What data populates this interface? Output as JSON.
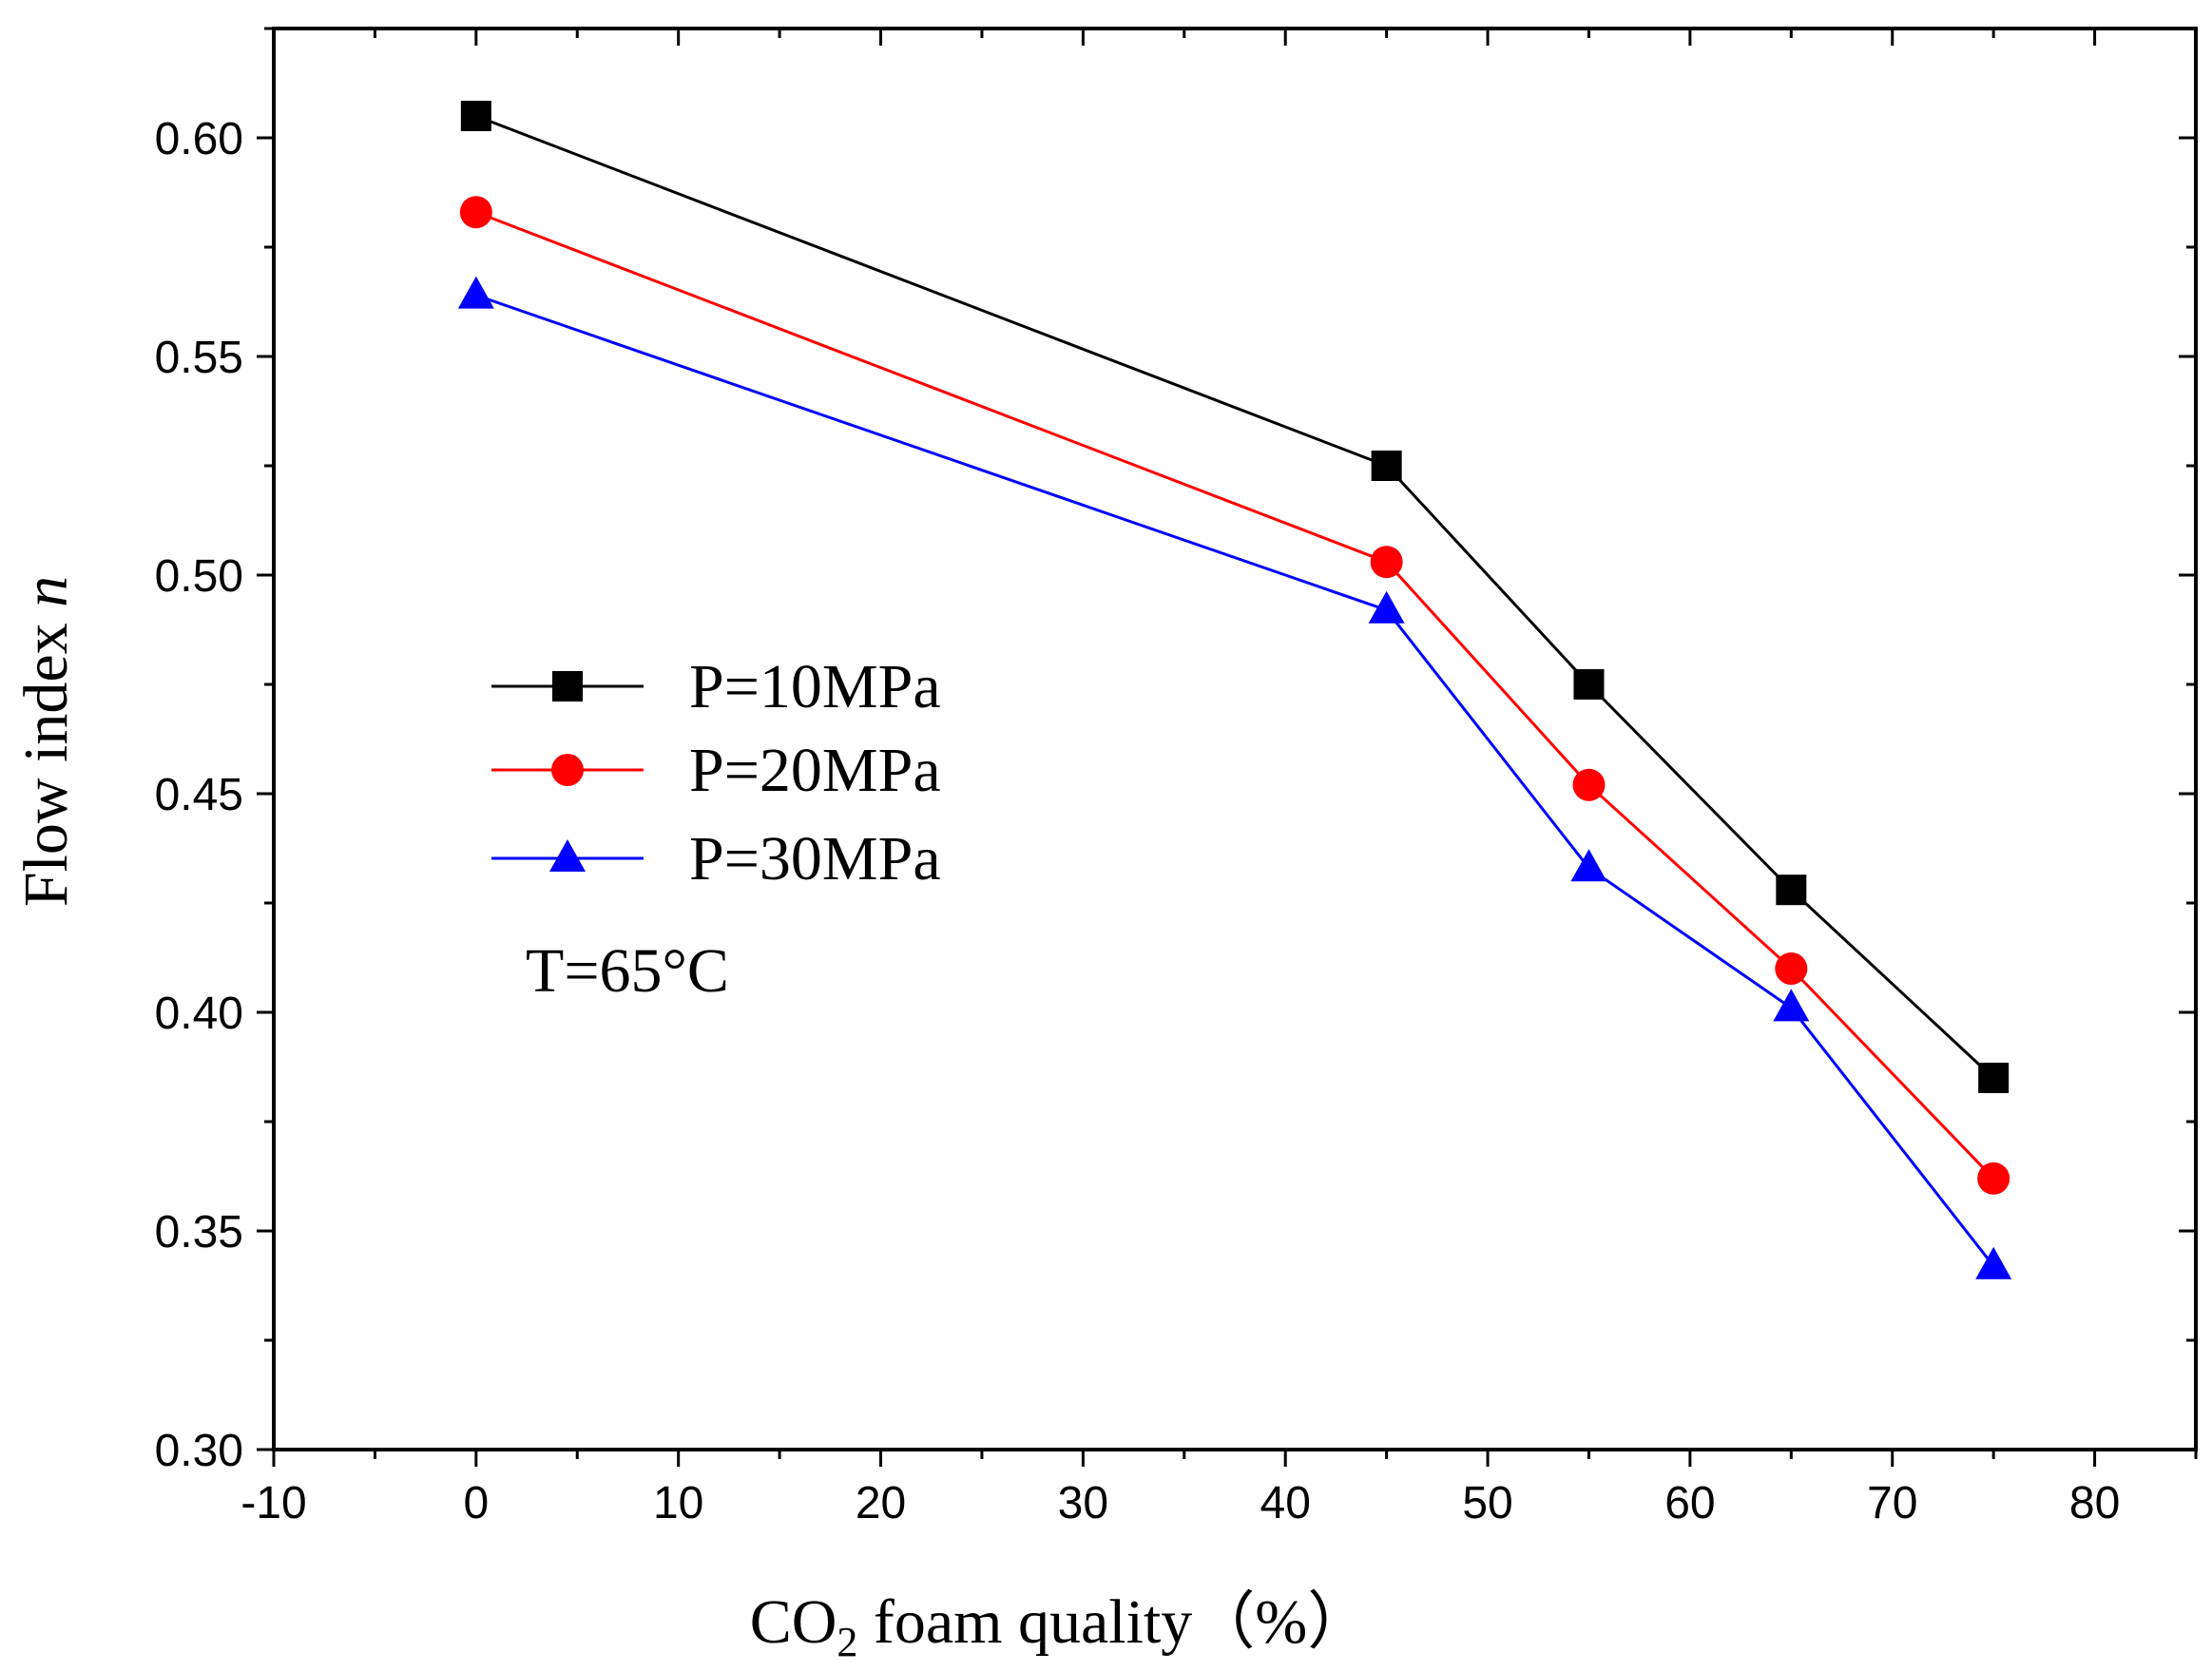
{
  "chart_data": {
    "type": "line",
    "title": "",
    "xlabel": {
      "main": "CO",
      "subscript": "2",
      "rest": " foam quality",
      "unit": "（%）"
    },
    "ylabel": {
      "main": "Flow index  ",
      "symbol": "n"
    },
    "xlim": [
      -10,
      85
    ],
    "ylim": [
      0.3,
      0.625
    ],
    "xticks": [
      -10,
      0,
      10,
      20,
      30,
      40,
      50,
      60,
      70,
      80
    ],
    "xtick_labels": [
      "-10",
      "0",
      "10",
      "20",
      "30",
      "40",
      "50",
      "60",
      "70",
      "80"
    ],
    "yticks": [
      0.3,
      0.35,
      0.4,
      0.45,
      0.5,
      0.55,
      0.6
    ],
    "ytick_labels": [
      "0.30",
      "0.35",
      "0.40",
      "0.45",
      "0.50",
      "0.55",
      "0.60"
    ],
    "grid": false,
    "legend_position": "left-middle",
    "annotation": "T=65°C",
    "x": [
      0,
      45,
      55,
      65,
      75
    ],
    "series": [
      {
        "name": "P=10MPa",
        "color": "#000000",
        "marker": "square",
        "values": [
          0.605,
          0.525,
          0.475,
          0.428,
          0.385
        ]
      },
      {
        "name": "P=20MPa",
        "color": "#ff0000",
        "marker": "circle",
        "values": [
          0.583,
          0.503,
          0.452,
          0.41,
          0.362
        ]
      },
      {
        "name": "P=30MPa",
        "color": "#0000ff",
        "marker": "triangle",
        "values": [
          0.564,
          0.492,
          0.433,
          0.401,
          0.342
        ]
      }
    ]
  }
}
